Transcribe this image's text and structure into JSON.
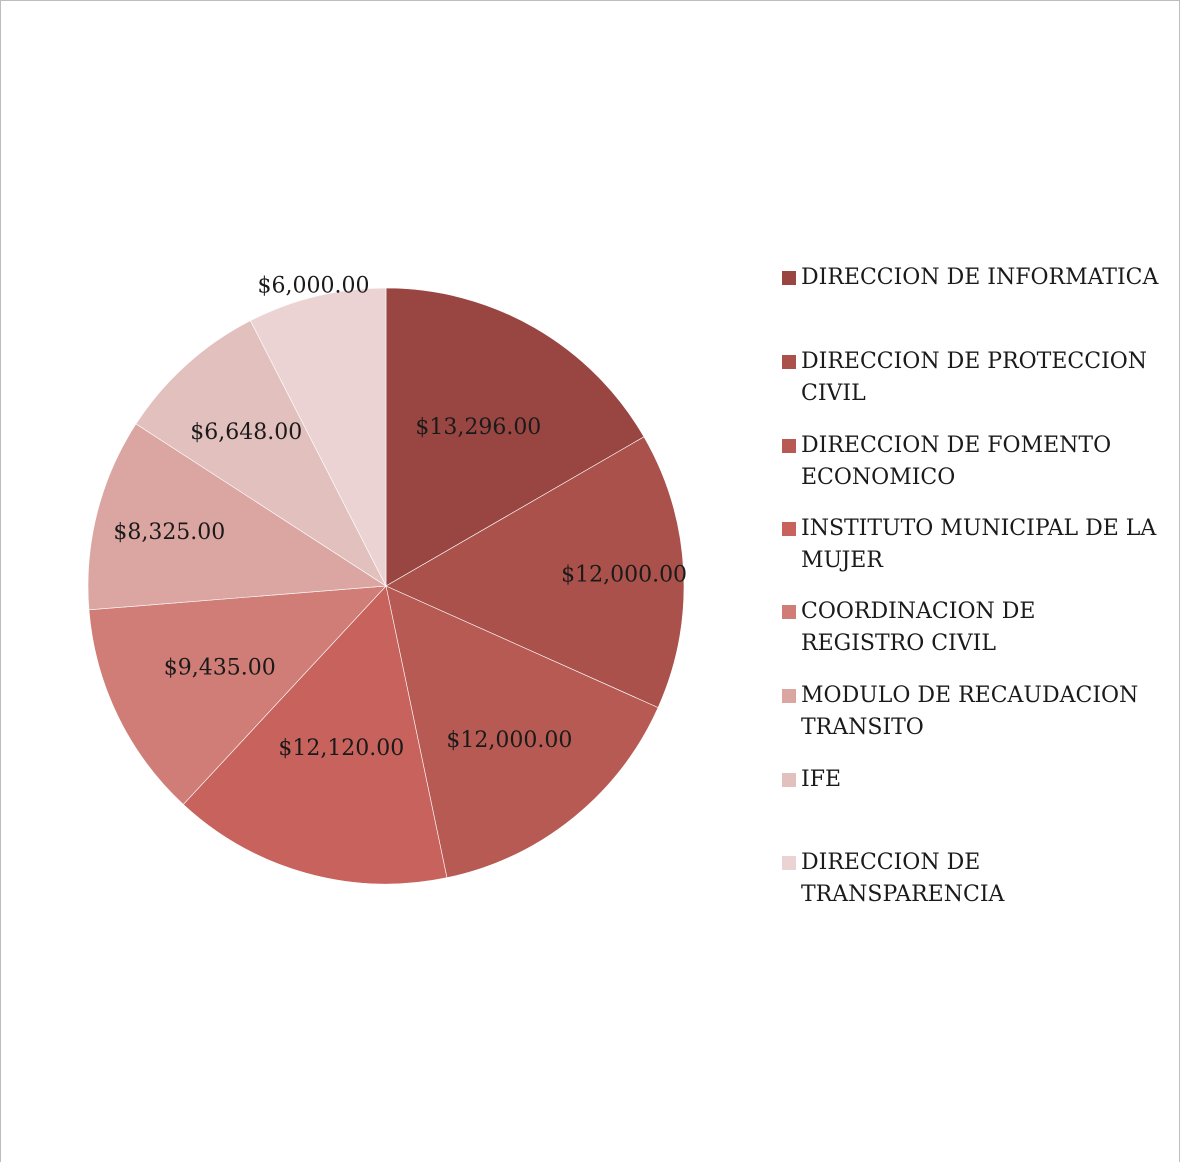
{
  "chart_data": {
    "type": "pie",
    "categories": [
      "DIRECCION DE INFORMATICA",
      "DIRECCION DE PROTECCION CIVIL",
      "DIRECCION DE FOMENTO ECONOMICO",
      "INSTITUTO MUNICIPAL DE LA MUJER",
      "COORDINACION DE REGISTRO CIVIL",
      "MODULO DE RECAUDACION TRANSITO",
      "IFE",
      "DIRECCION DE TRANSPARENCIA"
    ],
    "values": [
      13296,
      12000,
      12000,
      12120,
      9435,
      8325,
      6648,
      6000
    ],
    "labels": [
      "$13,296.00",
      "$12,000.00",
      "$12,000.00",
      "$12,120.00",
      "$9,435.00",
      "$8,325.00",
      "$6,648.00",
      "$6,000.00"
    ],
    "colors": [
      "#994642",
      "#aa514b",
      "#b85a54",
      "#c8625d",
      "#d07d77",
      "#dba6a2",
      "#e2c0be",
      "#ecd3d3"
    ],
    "legend_position": "right"
  }
}
